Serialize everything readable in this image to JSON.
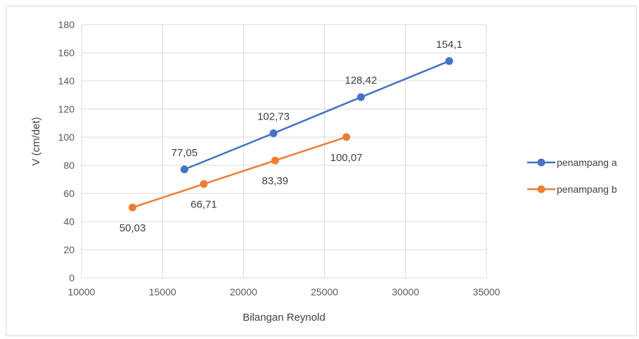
{
  "chart_data": {
    "type": "scatter",
    "xlabel": "Bilangan Reynold",
    "ylabel": "V (cm/det)",
    "xlim": [
      10000,
      35000
    ],
    "ylim": [
      0,
      180
    ],
    "xticks": [
      10000,
      15000,
      20000,
      25000,
      30000,
      35000
    ],
    "yticks": [
      0,
      20,
      40,
      60,
      80,
      100,
      120,
      140,
      160,
      180
    ],
    "grid": true,
    "legend_position": "right",
    "series": [
      {
        "name": "penampang a",
        "color": "#4472c4",
        "x": [
          16350,
          21850,
          27250,
          32700
        ],
        "y": [
          77.05,
          102.73,
          128.42,
          154.1
        ],
        "labels": [
          "77,05",
          "102,73",
          "128,42",
          "154,1"
        ],
        "label_position": "above"
      },
      {
        "name": "penampang b",
        "color": "#ed7d31",
        "x": [
          13150,
          17550,
          21950,
          26350
        ],
        "y": [
          50.03,
          66.71,
          83.39,
          100.07
        ],
        "labels": [
          "50,03",
          "66,71",
          "83,39",
          "100,07"
        ],
        "label_position": "below"
      }
    ]
  }
}
